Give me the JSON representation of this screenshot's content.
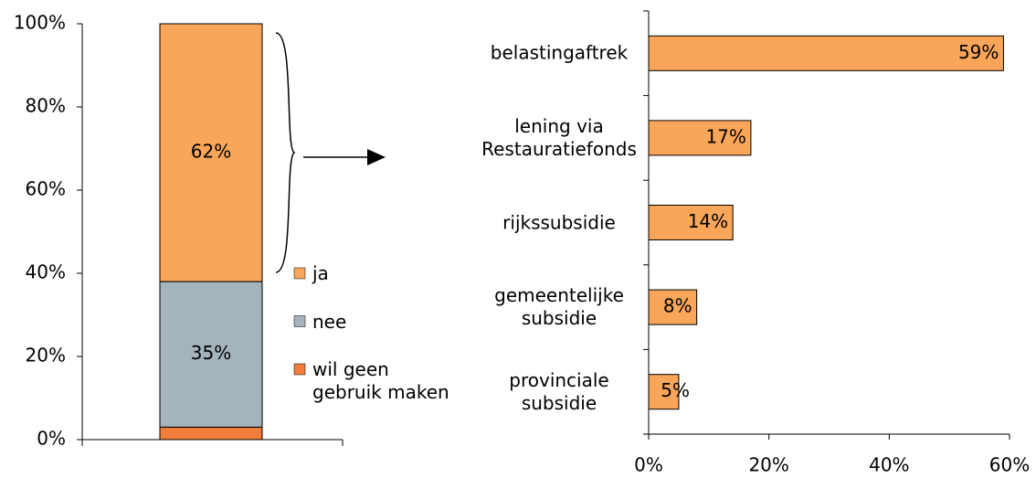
{
  "chart_data": [
    {
      "type": "stacked_bar",
      "ylim": [
        0,
        100
      ],
      "yticks": [
        {
          "value": 0,
          "label": "0%"
        },
        {
          "value": 20,
          "label": "20%"
        },
        {
          "value": 40,
          "label": "40%"
        },
        {
          "value": 60,
          "label": "60%"
        },
        {
          "value": 80,
          "label": "80%"
        },
        {
          "value": 100,
          "label": "100%"
        }
      ],
      "series": [
        {
          "name": "ja",
          "color": "#f9a65a",
          "values": [
            62
          ],
          "value_labels": [
            "62%"
          ]
        },
        {
          "name": "nee",
          "color": "#a5b3bd",
          "values": [
            35
          ],
          "value_labels": [
            "35%"
          ]
        },
        {
          "name": "wil geen\ngebruik maken",
          "color": "#f07d3c",
          "values": [
            3
          ]
        }
      ]
    },
    {
      "type": "hbar",
      "categories": [
        "belastingaftrek",
        "lening via\nRestauratiefonds",
        "rijkssubsidie",
        "gemeentelijke\nsubsidie",
        "provinciale\nsubsidie"
      ],
      "values": [
        59,
        17,
        14,
        8,
        5
      ],
      "value_labels": [
        "59%",
        "17%",
        "14%",
        "8%",
        "5%"
      ],
      "color": "#f9a65a",
      "xlim": [
        0,
        60
      ],
      "xticks": [
        {
          "value": 0,
          "label": "0%"
        },
        {
          "value": 20,
          "label": "20%"
        },
        {
          "value": 40,
          "label": "40%"
        },
        {
          "value": 60,
          "label": "60%"
        }
      ]
    }
  ]
}
